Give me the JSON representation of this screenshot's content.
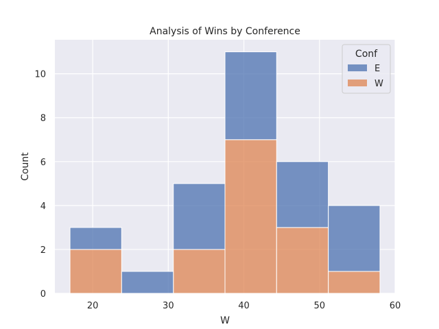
{
  "chart_data": {
    "type": "bar",
    "title": "Analysis of Wins by Conference",
    "xlabel": "W",
    "ylabel": "Count",
    "stacked": true,
    "bins": [
      [
        17.0,
        23.83
      ],
      [
        23.83,
        30.67
      ],
      [
        30.67,
        37.5
      ],
      [
        37.5,
        44.33
      ],
      [
        44.33,
        51.17
      ],
      [
        51.17,
        58.0
      ]
    ],
    "series": [
      {
        "name": "E",
        "values": [
          1,
          1,
          3,
          4,
          3,
          3
        ],
        "color": "#4c72b0"
      },
      {
        "name": "W",
        "values": [
          2,
          0,
          2,
          7,
          3,
          1
        ],
        "color": "#dd8452"
      }
    ],
    "xlim": [
      15,
      60
    ],
    "ylim": [
      0,
      11.55
    ],
    "xticks": [
      20,
      30,
      40,
      50,
      60
    ],
    "yticks": [
      0,
      2,
      4,
      6,
      8,
      10
    ],
    "grid": true,
    "legend": {
      "title": "Conf",
      "placement": "top-right"
    },
    "background": "#eaeaf2"
  }
}
